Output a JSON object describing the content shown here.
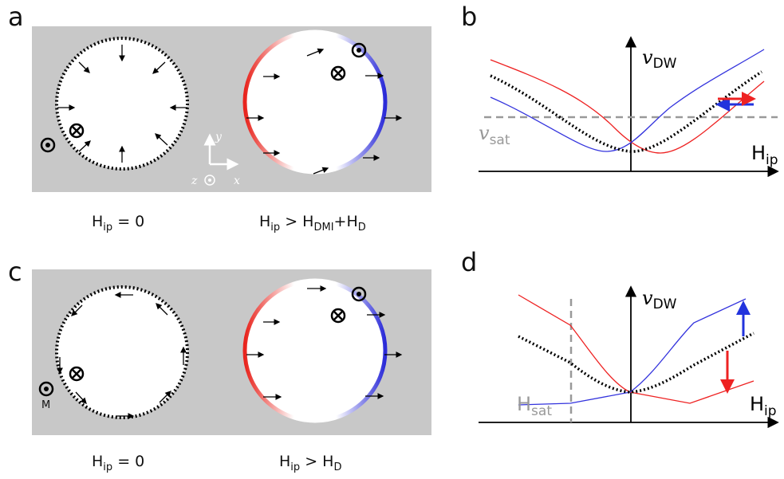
{
  "panels": {
    "a": "a",
    "b": "b",
    "c": "c",
    "d": "d"
  },
  "a": {
    "caption_left": [
      "H",
      "ip",
      " = 0"
    ],
    "caption_right": [
      "H",
      "ip",
      " > H",
      "DMI",
      "+H",
      "D"
    ],
    "axes": {
      "x": "x",
      "y": "y",
      "z": "z"
    }
  },
  "b": {
    "y_label": [
      "v",
      "DW"
    ],
    "x_label": [
      "H",
      "ip"
    ],
    "sat_label": [
      "v",
      "sat"
    ]
  },
  "c": {
    "caption_left": [
      "H",
      "ip",
      " = 0"
    ],
    "caption_right": [
      "H",
      "ip",
      " > H",
      "D"
    ],
    "m_label": "M"
  },
  "d": {
    "y_label": [
      "v",
      "DW"
    ],
    "x_label": [
      "H",
      "ip"
    ],
    "sat_label": [
      "H",
      "sat"
    ]
  }
}
